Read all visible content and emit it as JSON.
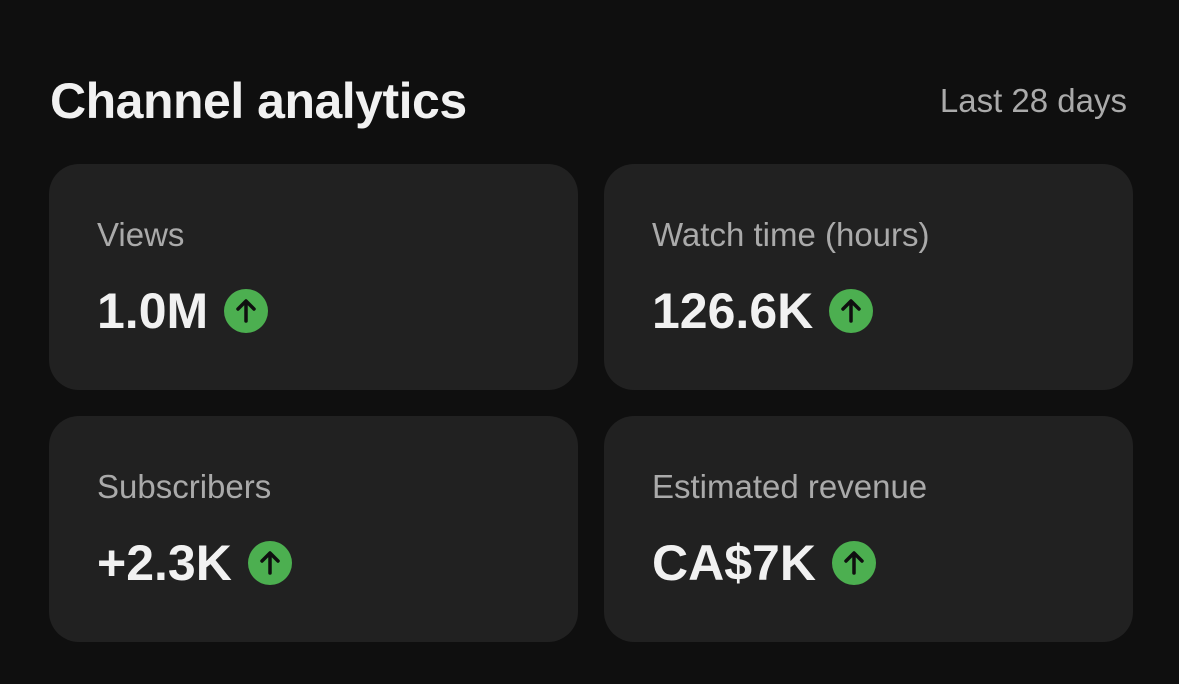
{
  "header": {
    "title": "Channel analytics",
    "period": "Last 28 days"
  },
  "cards": [
    {
      "label": "Views",
      "value": "1.0M"
    },
    {
      "label": "Watch time (hours)",
      "value": "126.6K"
    },
    {
      "label": "Subscribers",
      "value": "+2.3K"
    },
    {
      "label": "Estimated revenue",
      "value": "CA$7K"
    }
  ]
}
